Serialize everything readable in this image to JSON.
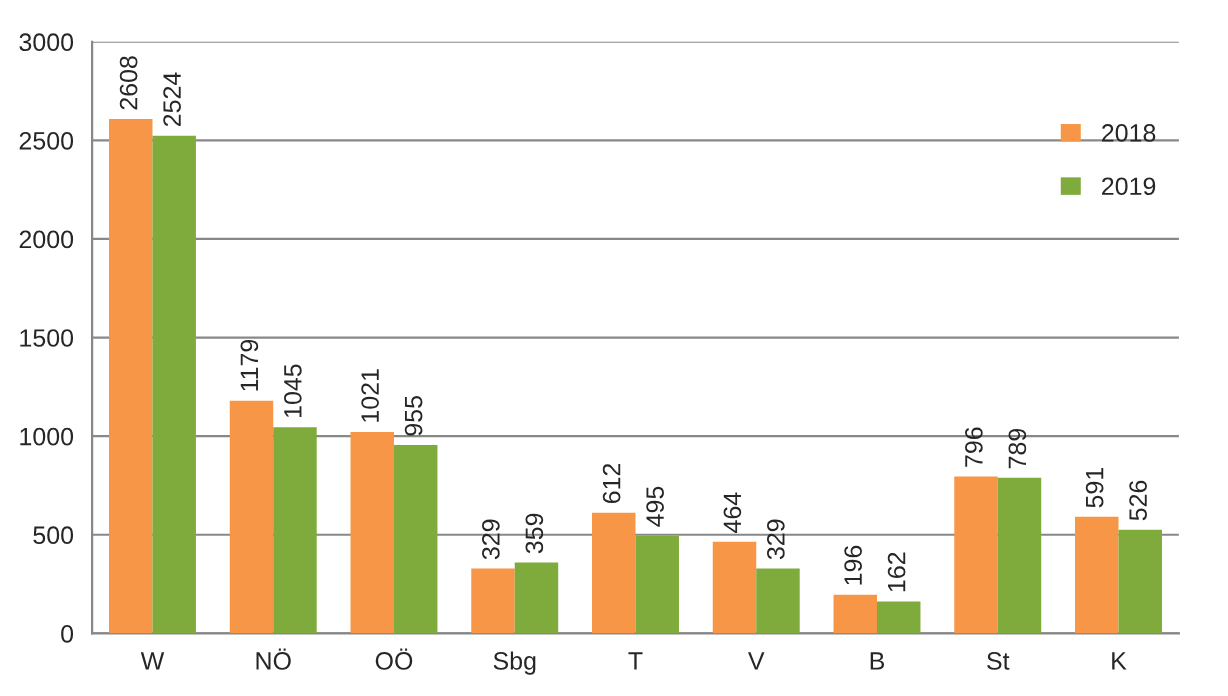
{
  "chart_data": {
    "type": "bar",
    "categories": [
      "W",
      "NÖ",
      "OÖ",
      "Sbg",
      "T",
      "V",
      "B",
      "St",
      "K"
    ],
    "series": [
      {
        "name": "2018",
        "color": "#f79646",
        "values": [
          2608,
          1179,
          1021,
          329,
          612,
          464,
          196,
          796,
          591
        ]
      },
      {
        "name": "2019",
        "color": "#7fab3c",
        "values": [
          2524,
          1045,
          955,
          359,
          495,
          329,
          162,
          789,
          526
        ]
      }
    ],
    "ylim": [
      0,
      3000
    ],
    "yticks": [
      0,
      500,
      1000,
      1500,
      2000,
      2500,
      3000
    ],
    "grid": "y",
    "legend": "top right",
    "data_labels": true
  }
}
